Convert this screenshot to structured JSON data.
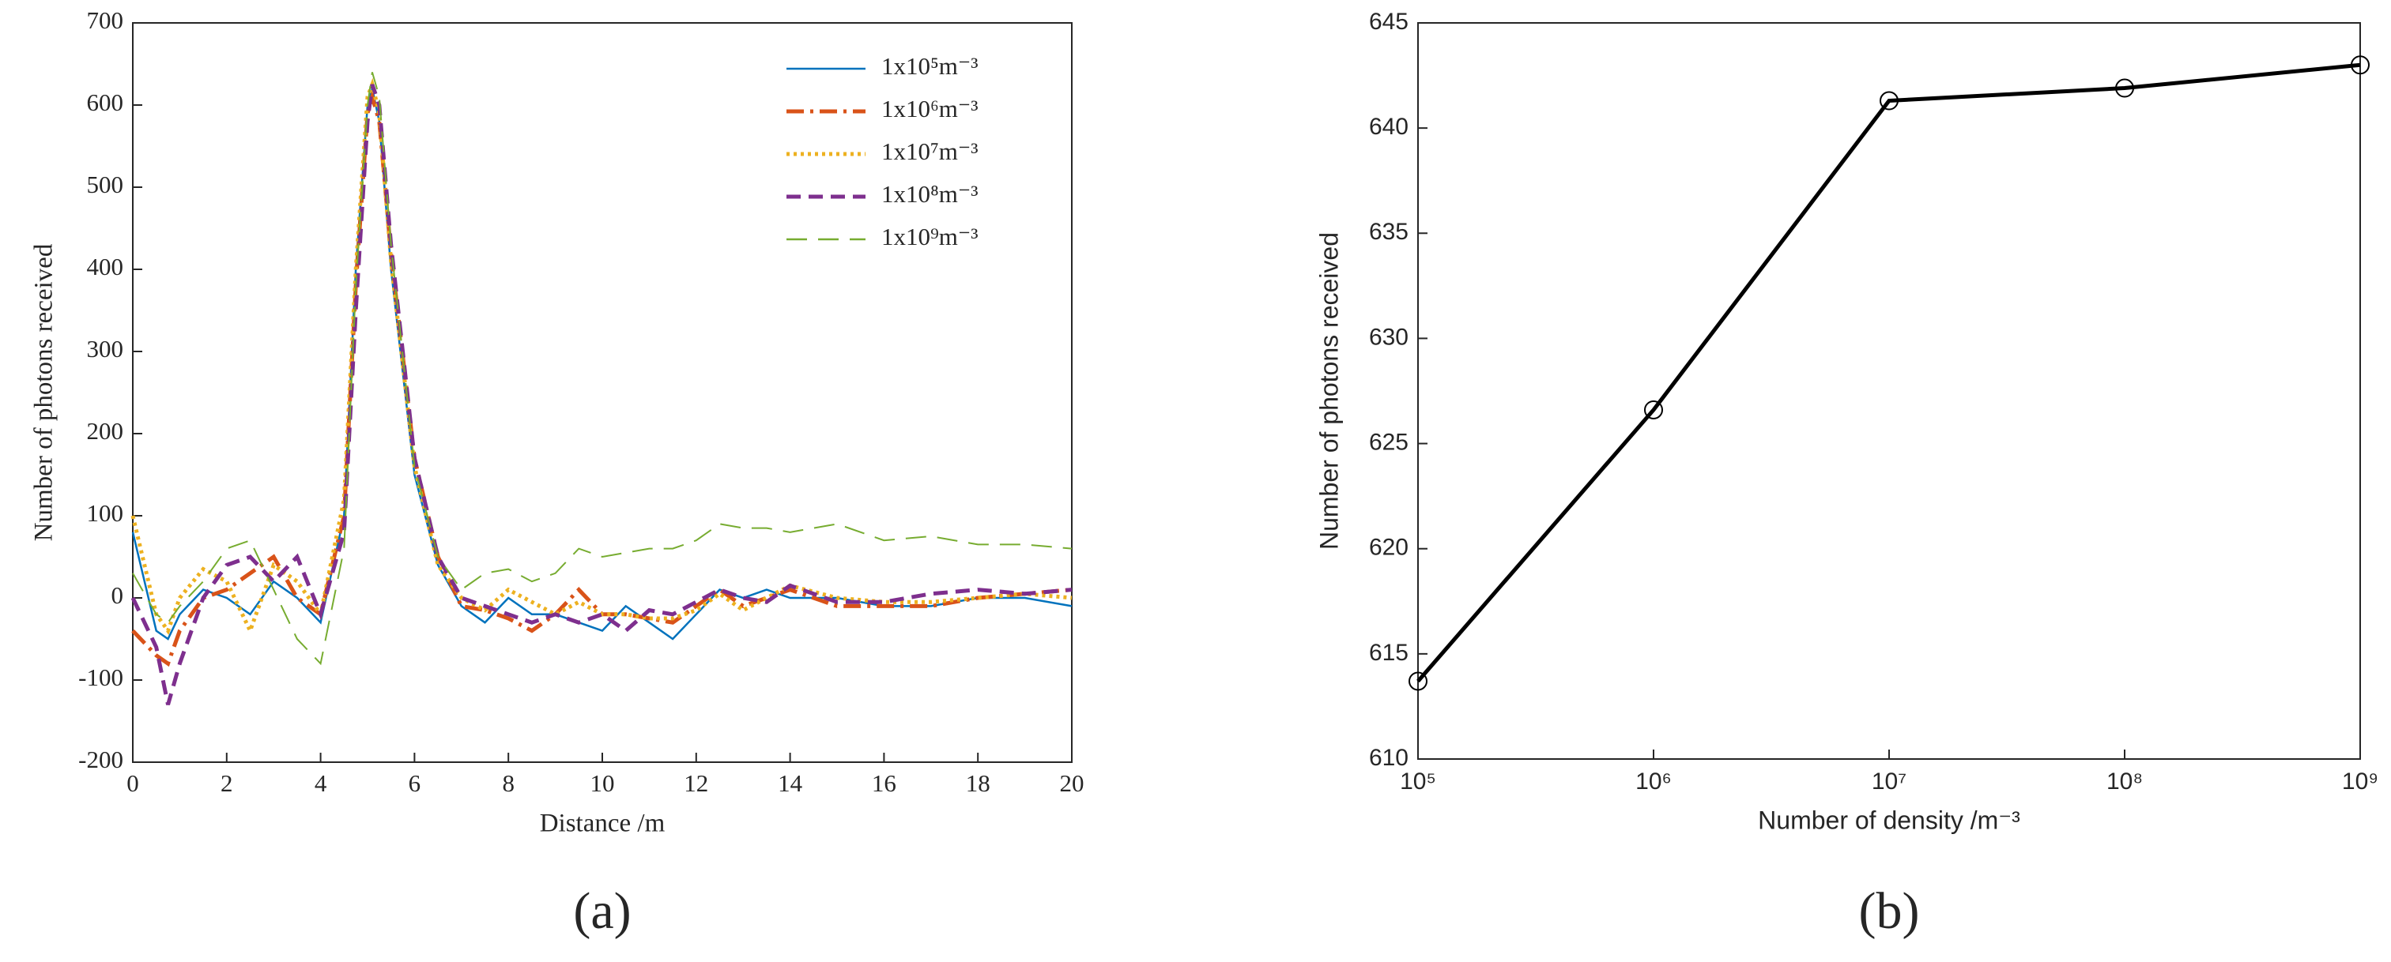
{
  "chart_data": [
    {
      "type": "line",
      "caption": "(a)",
      "x_label": "Distance /m",
      "y_label": "Number of photons received",
      "xlim": [
        0,
        20
      ],
      "ylim": [
        -200,
        700
      ],
      "xticks": [
        0,
        2,
        4,
        6,
        8,
        10,
        12,
        14,
        16,
        18,
        20
      ],
      "yticks": [
        -200,
        -100,
        0,
        100,
        200,
        300,
        400,
        500,
        600,
        700
      ],
      "legend": "upper right",
      "x": [
        0,
        0.5,
        0.75,
        1,
        1.5,
        2,
        2.5,
        3,
        3.5,
        4,
        4.5,
        4.75,
        5,
        5.1,
        5.25,
        5.5,
        6,
        6.5,
        7,
        7.5,
        8,
        8.5,
        9,
        9.5,
        10,
        10.5,
        11,
        11.5,
        12,
        12.5,
        13,
        13.5,
        14,
        15,
        16,
        17,
        18,
        19,
        20
      ],
      "series": [
        {
          "name": "1x10⁵m⁻³",
          "color": "#0072bd",
          "dash": "solid",
          "values": [
            80,
            -40,
            -50,
            -20,
            10,
            0,
            -20,
            20,
            0,
            -30,
            100,
            400,
            600,
            620,
            580,
            400,
            150,
            40,
            -10,
            -30,
            0,
            -20,
            -20,
            -30,
            -40,
            -10,
            -30,
            -50,
            -20,
            10,
            0,
            10,
            0,
            0,
            -10,
            -10,
            0,
            0,
            -10
          ]
        },
        {
          "name": "1x10⁶m⁻³",
          "color": "#d95319",
          "dash": "dashdot",
          "values": [
            -40,
            -70,
            -80,
            -40,
            0,
            10,
            30,
            50,
            0,
            -20,
            100,
            380,
            590,
            610,
            580,
            420,
            170,
            50,
            -10,
            -15,
            -25,
            -40,
            -20,
            10,
            -20,
            -20,
            -25,
            -30,
            -10,
            10,
            -10,
            0,
            10,
            -10,
            -10,
            -10,
            0,
            5,
            10
          ]
        },
        {
          "name": "1x10⁷m⁻³",
          "color": "#edb120",
          "dash": "dotted",
          "values": [
            100,
            -20,
            -40,
            0,
            35,
            20,
            -40,
            40,
            20,
            -20,
            120,
            400,
            610,
            625,
            590,
            410,
            160,
            40,
            0,
            -15,
            10,
            -5,
            -20,
            -5,
            -20,
            -20,
            -25,
            -25,
            -15,
            5,
            -15,
            0,
            15,
            0,
            -5,
            -5,
            0,
            5,
            0
          ]
        },
        {
          "name": "1x10⁸m⁻³",
          "color": "#7e2f8e",
          "dash": "dashed",
          "values": [
            0,
            -60,
            -130,
            -80,
            0,
            40,
            50,
            20,
            50,
            -20,
            80,
            350,
            580,
            625,
            600,
            430,
            170,
            50,
            0,
            -10,
            -20,
            -30,
            -20,
            -30,
            -20,
            -40,
            -15,
            -20,
            -5,
            10,
            0,
            -5,
            15,
            -5,
            -5,
            5,
            10,
            5,
            10
          ]
        },
        {
          "name": "1x10⁹m⁻³",
          "color": "#77ac30",
          "dash": "longdash",
          "values": [
            30,
            -20,
            -30,
            -10,
            20,
            60,
            70,
            10,
            -50,
            -80,
            60,
            380,
            600,
            640,
            610,
            430,
            160,
            50,
            10,
            30,
            35,
            20,
            30,
            60,
            50,
            55,
            60,
            60,
            70,
            90,
            85,
            85,
            80,
            90,
            70,
            75,
            65,
            65,
            60
          ]
        }
      ]
    },
    {
      "type": "line",
      "caption": "(b)",
      "x_label": "Number of density /m⁻³",
      "y_label": "Number of photons received",
      "xscale": "log",
      "marker": "circle",
      "xlim": [
        100000,
        1000000000
      ],
      "ylim": [
        610,
        645
      ],
      "xticks": [
        {
          "value": 100000,
          "label": "10⁵"
        },
        {
          "value": 1000000,
          "label": "10⁶"
        },
        {
          "value": 10000000,
          "label": "10⁷"
        },
        {
          "value": 100000000,
          "label": "10⁸"
        },
        {
          "value": 1000000000,
          "label": "10⁹"
        }
      ],
      "yticks": [
        610,
        615,
        620,
        625,
        630,
        635,
        640,
        645
      ],
      "x": [
        100000,
        1000000,
        10000000,
        100000000,
        1000000000
      ],
      "series": [
        {
          "color": "#000000",
          "dash": "solid",
          "values": [
            613.7,
            626.6,
            641.3,
            641.9,
            643
          ]
        }
      ]
    }
  ]
}
